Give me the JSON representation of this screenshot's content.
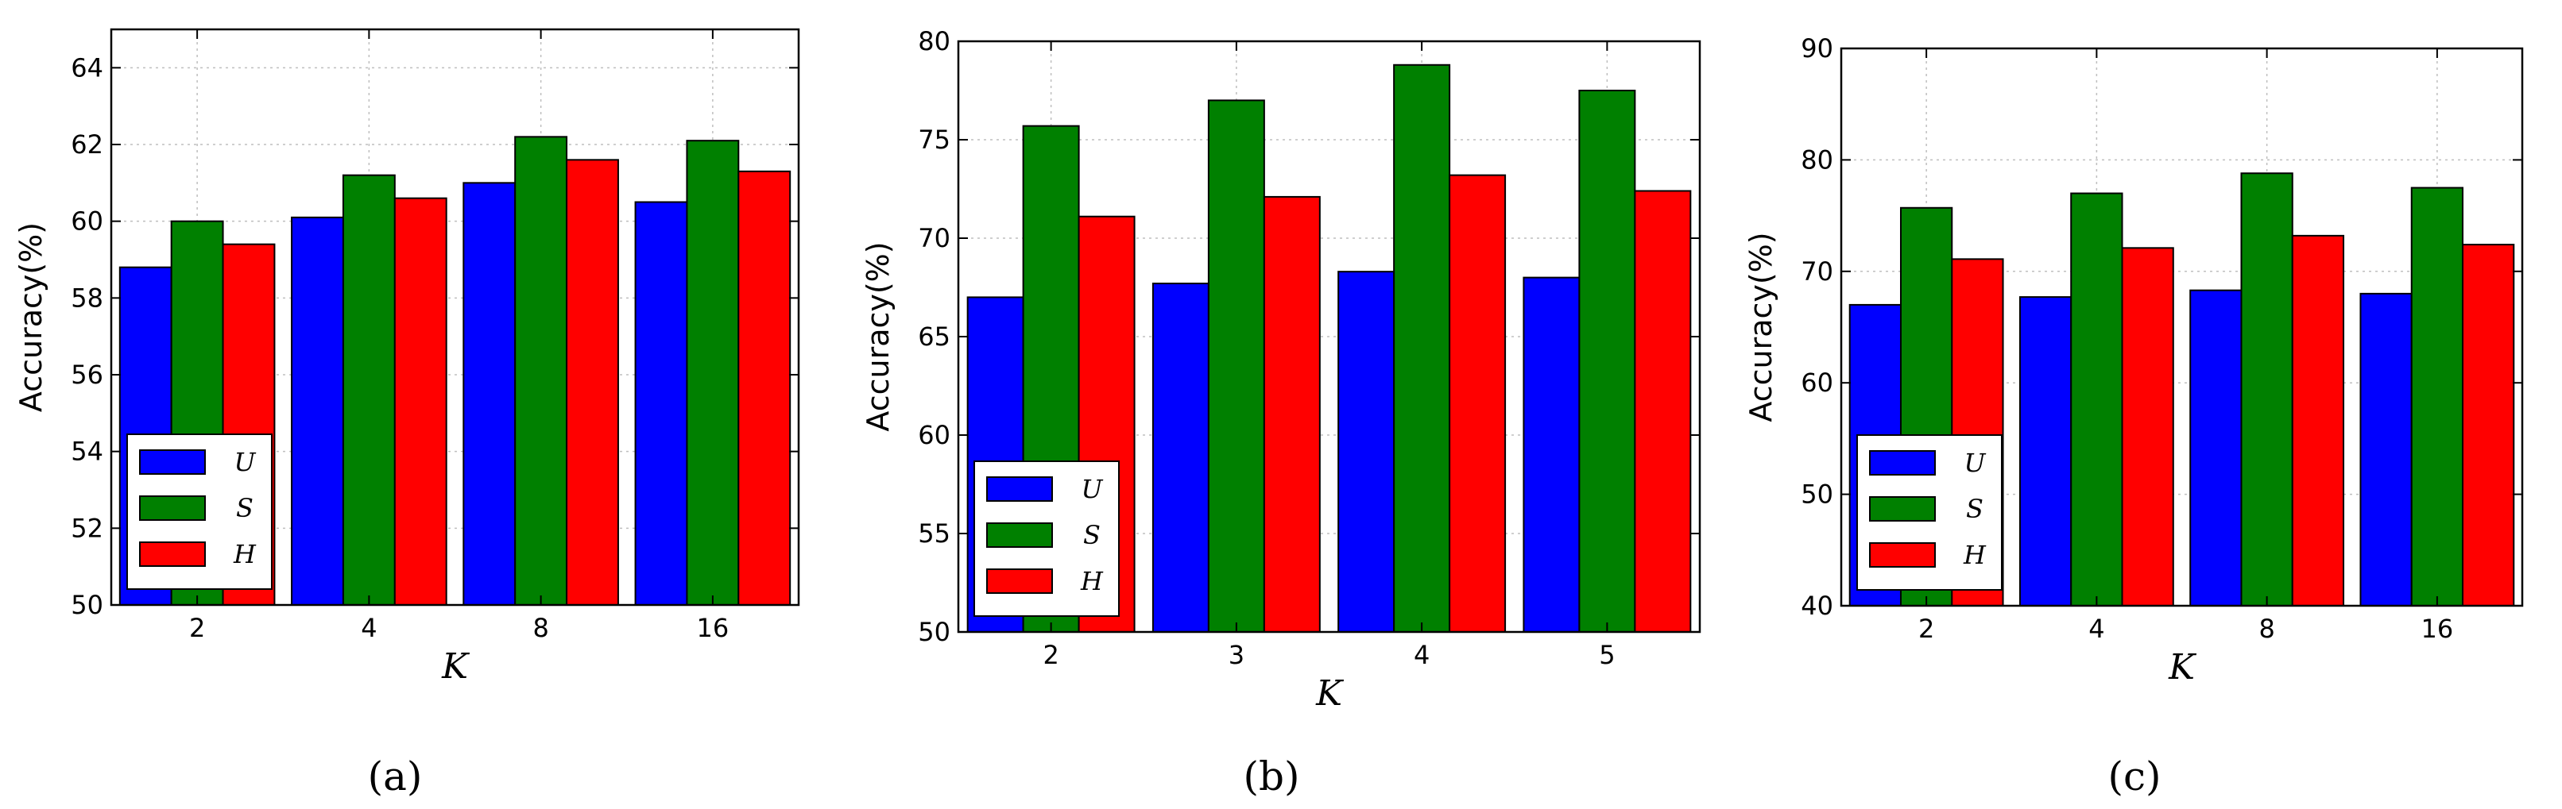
{
  "chart_data": [
    {
      "type": "bar",
      "caption": "(a)",
      "categories": [
        "2",
        "4",
        "8",
        "16"
      ],
      "ylabel": "Accuracy(%)",
      "xlabel": "K",
      "ylim": [
        50,
        65
      ],
      "yticks": [
        "50",
        "52",
        "54",
        "56",
        "58",
        "60",
        "62",
        "64"
      ],
      "grid": true,
      "legend_position": "bottom-left",
      "series": [
        {
          "name": "U",
          "color": "#0000ff",
          "values": [
            58.8,
            60.1,
            61.0,
            60.5
          ]
        },
        {
          "name": "S",
          "color": "#008000",
          "values": [
            60.0,
            61.2,
            62.2,
            62.1
          ]
        },
        {
          "name": "H",
          "color": "#ff0000",
          "values": [
            59.4,
            60.6,
            61.6,
            61.3
          ]
        }
      ]
    },
    {
      "type": "bar",
      "caption": "(b)",
      "categories": [
        "2",
        "3",
        "4",
        "5"
      ],
      "ylabel": "Accuracy(%)",
      "xlabel": "K",
      "ylim": [
        50,
        80
      ],
      "yticks": [
        "50",
        "55",
        "60",
        "65",
        "70",
        "75",
        "80"
      ],
      "grid": true,
      "legend_position": "bottom-left",
      "series": [
        {
          "name": "U",
          "color": "#0000ff",
          "values": [
            67.0,
            67.7,
            68.3,
            68.0
          ]
        },
        {
          "name": "S",
          "color": "#008000",
          "values": [
            75.7,
            77.0,
            78.8,
            77.5
          ]
        },
        {
          "name": "H",
          "color": "#ff0000",
          "values": [
            71.1,
            72.1,
            73.2,
            72.4
          ]
        }
      ]
    },
    {
      "type": "bar",
      "caption": "(c)",
      "categories": [
        "2",
        "4",
        "8",
        "16"
      ],
      "ylabel": "Accuracy(%)",
      "xlabel": "K",
      "ylim": [
        40,
        90
      ],
      "yticks": [
        "40",
        "50",
        "60",
        "70",
        "80",
        "90"
      ],
      "grid": true,
      "legend_position": "bottom-left",
      "series": [
        {
          "name": "U",
          "color": "#0000ff",
          "values": [
            67.0,
            67.7,
            68.3,
            68.0
          ]
        },
        {
          "name": "S",
          "color": "#008000",
          "values": [
            75.7,
            77.0,
            78.8,
            77.5
          ]
        },
        {
          "name": "H",
          "color": "#ff0000",
          "values": [
            71.1,
            72.1,
            73.2,
            72.4
          ]
        }
      ]
    }
  ]
}
